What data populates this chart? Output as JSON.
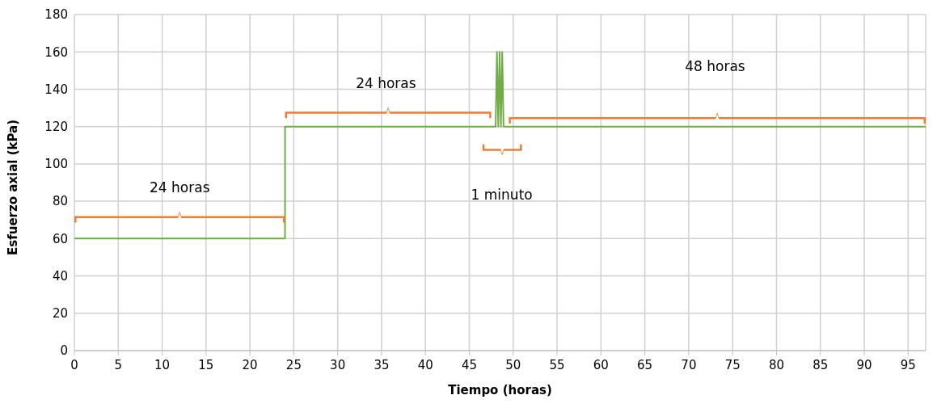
{
  "chart_data": {
    "type": "line",
    "xlabel": "Tiempo (horas)",
    "ylabel": "Esfuerzo axial (kPa)",
    "x": [
      0,
      24,
      24,
      48,
      48.15,
      48.3,
      48.45,
      48.6,
      48.75,
      48.9,
      97
    ],
    "series": [
      {
        "color": "#70ad47",
        "values": [
          60,
          60,
          120,
          120,
          160,
          120,
          160,
          120,
          160,
          120,
          120
        ]
      }
    ],
    "xlim": [
      0,
      97
    ],
    "xticks": [
      0,
      5,
      10,
      15,
      20,
      25,
      30,
      35,
      40,
      45,
      50,
      55,
      60,
      65,
      70,
      75,
      80,
      85,
      90,
      95
    ],
    "ylim": [
      0,
      180
    ],
    "yticks": [
      0,
      20,
      40,
      60,
      80,
      100,
      120,
      140,
      160,
      180
    ],
    "grid": true,
    "marker": "none",
    "line_style": "solid",
    "legend": false,
    "annotations": [
      "24 horas",
      "24 horas",
      "1 minuto",
      "48 horas"
    ]
  }
}
